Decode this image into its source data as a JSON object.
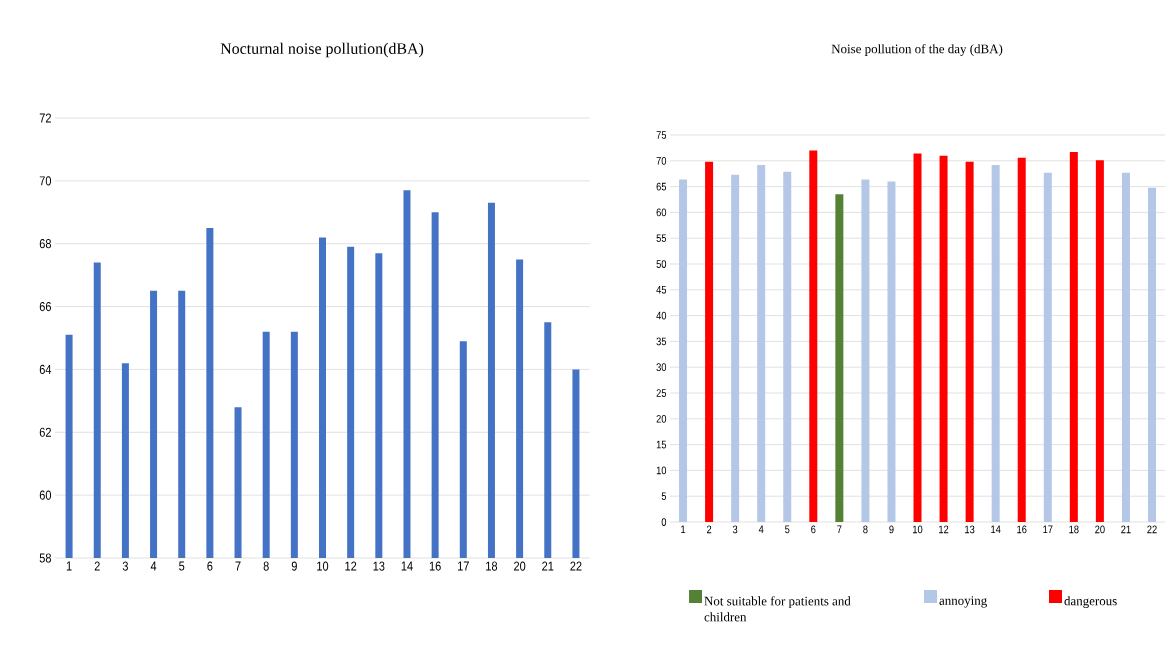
{
  "chart_data": [
    {
      "type": "bar",
      "title": "Nocturnal noise pollution(dBA)",
      "categories": [
        "1",
        "2",
        "3",
        "4",
        "5",
        "6",
        "7",
        "8",
        "9",
        "10",
        "12",
        "13",
        "14",
        "16",
        "17",
        "18",
        "20",
        "21",
        "22"
      ],
      "values": [
        65.1,
        67.4,
        64.2,
        66.5,
        66.5,
        68.5,
        62.8,
        65.2,
        65.2,
        68.2,
        67.9,
        67.7,
        69.7,
        69.0,
        64.9,
        69.3,
        67.5,
        65.5,
        64.0
      ],
      "color": "#4472c4",
      "ylim": [
        58,
        72
      ],
      "yticks": [
        58,
        60,
        62,
        64,
        66,
        68,
        70,
        72
      ],
      "grid": "y"
    },
    {
      "type": "bar",
      "title": "Noise pollution of the day (dBA)",
      "categories": [
        "1",
        "2",
        "3",
        "4",
        "5",
        "6",
        "7",
        "8",
        "9",
        "10",
        "12",
        "13",
        "14",
        "16",
        "17",
        "18",
        "20",
        "21",
        "22"
      ],
      "series": [
        {
          "name": "Not suitable for patients and children",
          "color": "#548235",
          "values": [
            null,
            null,
            null,
            null,
            null,
            null,
            63.5,
            null,
            null,
            null,
            null,
            null,
            null,
            null,
            null,
            null,
            null,
            null,
            null
          ]
        },
        {
          "name": "annoying",
          "color": "#b4c7e7",
          "values": [
            66.4,
            null,
            67.3,
            69.2,
            67.9,
            null,
            null,
            66.4,
            66.0,
            null,
            null,
            null,
            69.2,
            null,
            67.7,
            null,
            null,
            67.7,
            64.8
          ]
        },
        {
          "name": "dangerous",
          "color": "#ff0000",
          "values": [
            null,
            69.8,
            null,
            null,
            null,
            72.0,
            null,
            null,
            null,
            71.4,
            71.0,
            69.8,
            null,
            70.6,
            null,
            71.7,
            70.1,
            null,
            null
          ]
        }
      ],
      "ylim": [
        0,
        75
      ],
      "yticks": [
        0,
        5,
        10,
        15,
        20,
        25,
        30,
        35,
        40,
        45,
        50,
        55,
        60,
        65,
        70,
        75
      ],
      "grid": "y",
      "legend": "bottom"
    }
  ]
}
